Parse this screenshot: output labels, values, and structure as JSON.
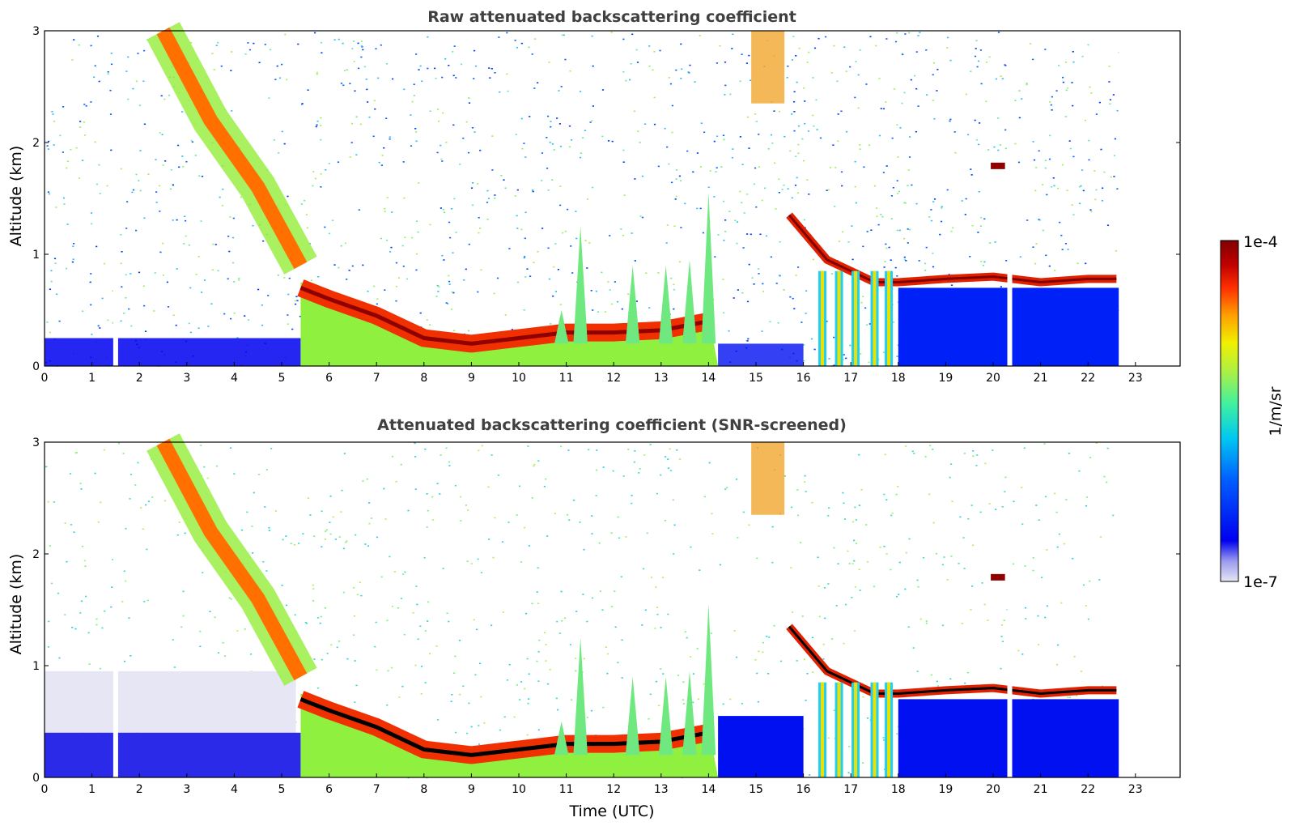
{
  "chart_data": [
    {
      "type": "heatmap",
      "title": "Raw attenuated backscattering coefficient",
      "xlabel": "",
      "ylabel": "Altitude (km)",
      "xlim": [
        0,
        24
      ],
      "ylim": [
        0,
        3
      ],
      "xticks": [
        "0",
        "1",
        "2",
        "3",
        "4",
        "5",
        "6",
        "7",
        "8",
        "9",
        "10",
        "11",
        "12",
        "13",
        "14",
        "15",
        "16",
        "17",
        "18",
        "19",
        "20",
        "21",
        "22",
        "23"
      ],
      "yticks": [
        "0",
        "1",
        "2",
        "3"
      ],
      "data_end_hour": 22.65,
      "missing_data_hours": [
        1.5,
        20.35
      ],
      "features": {
        "boundary_layer_top_km": [
          [
            5.4,
            0.7
          ],
          [
            6,
            0.6
          ],
          [
            7,
            0.45
          ],
          [
            8,
            0.25
          ],
          [
            9,
            0.2
          ],
          [
            10,
            0.25
          ],
          [
            11,
            0.3
          ],
          [
            12,
            0.3
          ],
          [
            13,
            0.32
          ],
          [
            14,
            0.4
          ]
        ],
        "cirrus_fallstreak_km": [
          [
            2.5,
            3.0
          ],
          [
            3.5,
            2.2
          ],
          [
            4.5,
            1.6
          ],
          [
            5.4,
            0.9
          ]
        ],
        "stratocumulus_top_km": [
          [
            15.7,
            1.35
          ],
          [
            16.5,
            0.95
          ],
          [
            17,
            0.85
          ],
          [
            17.5,
            0.75
          ],
          [
            18,
            0.75
          ],
          [
            19,
            0.78
          ],
          [
            20,
            0.8
          ],
          [
            21,
            0.75
          ],
          [
            22,
            0.78
          ],
          [
            22.6,
            0.78
          ]
        ]
      }
    },
    {
      "type": "heatmap",
      "title": "Attenuated backscattering coefficient (SNR-screened)",
      "xlabel": "Time (UTC)",
      "ylabel": "Altitude (km)",
      "xlim": [
        0,
        24
      ],
      "ylim": [
        0,
        3
      ],
      "xticks": [
        "0",
        "1",
        "2",
        "3",
        "4",
        "5",
        "6",
        "7",
        "8",
        "9",
        "10",
        "11",
        "12",
        "13",
        "14",
        "15",
        "16",
        "17",
        "18",
        "19",
        "20",
        "21",
        "22",
        "23"
      ],
      "yticks": [
        "0",
        "1",
        "2",
        "3"
      ],
      "data_end_hour": 22.65,
      "missing_data_hours": [
        1.5,
        20.35
      ],
      "features": {
        "boundary_layer_top_km": [
          [
            5.4,
            0.7
          ],
          [
            6,
            0.6
          ],
          [
            7,
            0.45
          ],
          [
            8,
            0.25
          ],
          [
            9,
            0.2
          ],
          [
            10,
            0.25
          ],
          [
            11,
            0.3
          ],
          [
            12,
            0.3
          ],
          [
            13,
            0.32
          ],
          [
            14,
            0.4
          ]
        ],
        "cirrus_fallstreak_km": [
          [
            2.5,
            3.0
          ],
          [
            3.5,
            2.2
          ],
          [
            4.5,
            1.6
          ],
          [
            5.4,
            0.9
          ]
        ],
        "stratocumulus_top_km": [
          [
            15.7,
            1.35
          ],
          [
            16.5,
            0.95
          ],
          [
            17,
            0.85
          ],
          [
            17.5,
            0.75
          ],
          [
            18,
            0.75
          ],
          [
            19,
            0.78
          ],
          [
            20,
            0.8
          ],
          [
            21,
            0.75
          ],
          [
            22,
            0.78
          ],
          [
            22.6,
            0.78
          ]
        ]
      }
    }
  ],
  "colorbar": {
    "label": "1/m/sr",
    "max_label": "1e-4",
    "min_label": "1e-7",
    "range": [
      1e-07,
      0.0001
    ],
    "scale": "log",
    "colors": [
      "#e6e6f5",
      "#b4b4ee",
      "#7878ee",
      "#0000f0",
      "#0050ff",
      "#00a0ff",
      "#00e0e0",
      "#40f0a0",
      "#a0f050",
      "#f0f000",
      "#ffb000",
      "#ff6000",
      "#f01000",
      "#b00000",
      "#800000"
    ]
  }
}
